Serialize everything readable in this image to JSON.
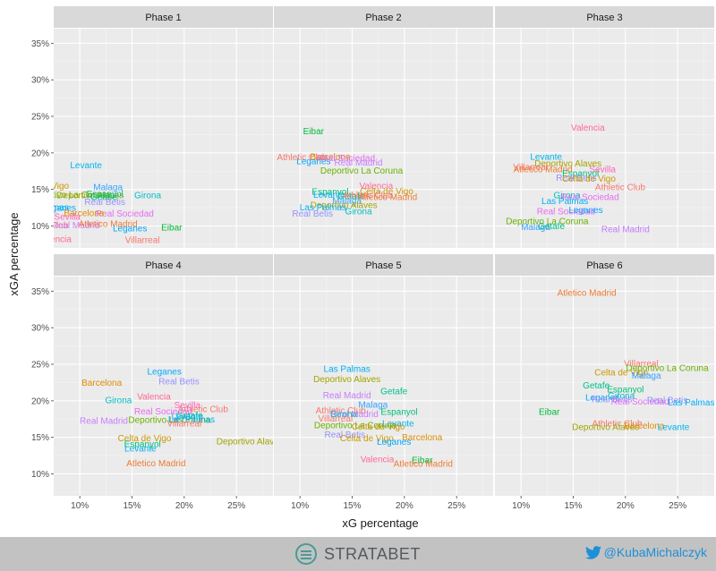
{
  "chart_data": {
    "type": "scatter",
    "xlabel": "xG percentage",
    "ylabel": "xGA percentage",
    "xlim": [
      7.5,
      28.5
    ],
    "ylim": [
      7,
      37
    ],
    "xticks": [
      10,
      15,
      20,
      25
    ],
    "yticks": [
      10,
      15,
      20,
      25,
      30,
      35
    ],
    "x_tick_labels": [
      "10%",
      "15%",
      "20%",
      "25%"
    ],
    "y_tick_labels": [
      "10%",
      "15%",
      "20%",
      "25%",
      "30%",
      "35%"
    ],
    "grid": true,
    "legend": "none",
    "team_colors": {
      "Atletico Madrid": "#f07a33",
      "Athletic Club": "#f8766d",
      "Barcelona": "#e08b00",
      "Celta de Vigo": "#c99800",
      "Deportivo Alaves": "#a3a500",
      "Deportivo La Coruna": "#6bb100",
      "Eibar": "#00ba38",
      "Espanyol": "#00bf7d",
      "Getafe": "#00c08b",
      "Girona": "#00bfc4",
      "Las Palmas": "#00b0f6",
      "Leganes": "#00a9ff",
      "Levante": "#00b4ef",
      "Malaga": "#35a2ff",
      "Real Betis": "#9590ff",
      "Real Madrid": "#c77cff",
      "Real Sociedad": "#e76bf3",
      "Sevilla": "#ff62bc",
      "Valencia": "#ff6a98",
      "Villarreal": "#f8766d"
    },
    "panels": [
      {
        "title": "Phase 1",
        "points": [
          {
            "team": "Levante",
            "x": 10.6,
            "y": 18.3
          },
          {
            "team": "Celta de Vigo",
            "x": 6.4,
            "y": 15.5
          },
          {
            "team": "Malaga",
            "x": 12.7,
            "y": 15.3
          },
          {
            "team": "Deportivo La Coruna",
            "x": 9.0,
            "y": 14.3
          },
          {
            "team": "Deportivo Alaves",
            "x": 11.0,
            "y": 14.2
          },
          {
            "team": "Espanyol",
            "x": 12.4,
            "y": 14.4
          },
          {
            "team": "Getafe",
            "x": 12.3,
            "y": 14.0
          },
          {
            "team": "Girona",
            "x": 16.5,
            "y": 14.2
          },
          {
            "team": "Real Betis",
            "x": 12.4,
            "y": 13.3
          },
          {
            "team": "Las Palmas",
            "x": 6.7,
            "y": 12.6
          },
          {
            "team": "Leganes",
            "x": 8.0,
            "y": 12.5
          },
          {
            "team": "Real Sociedad",
            "x": 14.3,
            "y": 11.7
          },
          {
            "team": "Barcelona",
            "x": 10.4,
            "y": 11.8
          },
          {
            "team": "Sevilla",
            "x": 8.8,
            "y": 11.3
          },
          {
            "team": "Athletic Club",
            "x": 6.5,
            "y": 10.1
          },
          {
            "team": "Real Madrid",
            "x": 9.6,
            "y": 10.1
          },
          {
            "team": "Atletico Madrid",
            "x": 12.7,
            "y": 10.3
          },
          {
            "team": "Leganes",
            "x": 14.8,
            "y": 9.7
          },
          {
            "team": "Eibar",
            "x": 18.8,
            "y": 9.8
          },
          {
            "team": "Valencia",
            "x": 7.6,
            "y": 8.2
          },
          {
            "team": "Villarreal",
            "x": 16.0,
            "y": 8.1
          }
        ]
      },
      {
        "title": "Phase 2",
        "points": [
          {
            "team": "Eibar",
            "x": 11.3,
            "y": 23.0
          },
          {
            "team": "Athletic Club",
            "x": 10.2,
            "y": 19.4
          },
          {
            "team": "Barcelona",
            "x": 12.9,
            "y": 19.5
          },
          {
            "team": "Leganes",
            "x": 11.3,
            "y": 18.9
          },
          {
            "team": "Real Sociedad",
            "x": 14.4,
            "y": 19.3
          },
          {
            "team": "Real Madrid",
            "x": 15.6,
            "y": 18.7
          },
          {
            "team": "Deportivo La Coruna",
            "x": 15.9,
            "y": 17.6
          },
          {
            "team": "Valencia",
            "x": 17.3,
            "y": 15.5
          },
          {
            "team": "Espanyol",
            "x": 12.9,
            "y": 14.7
          },
          {
            "team": "Celta de Vigo",
            "x": 18.3,
            "y": 14.8
          },
          {
            "team": "Levante",
            "x": 12.8,
            "y": 14.3
          },
          {
            "team": "Getafe",
            "x": 14.9,
            "y": 14.1
          },
          {
            "team": "Athletic Club",
            "x": 16.5,
            "y": 14.2
          },
          {
            "team": "Atletico Madrid",
            "x": 18.4,
            "y": 14.0
          },
          {
            "team": "Malaga",
            "x": 14.5,
            "y": 13.5
          },
          {
            "team": "Deportivo Alaves",
            "x": 14.2,
            "y": 12.9
          },
          {
            "team": "Las Palmas",
            "x": 12.2,
            "y": 12.6
          },
          {
            "team": "Girona",
            "x": 15.6,
            "y": 12.0
          },
          {
            "team": "Real Betis",
            "x": 11.2,
            "y": 11.7
          }
        ]
      },
      {
        "title": "Phase 3",
        "points": [
          {
            "team": "Valencia",
            "x": 16.4,
            "y": 23.5
          },
          {
            "team": "Levante",
            "x": 12.4,
            "y": 19.5
          },
          {
            "team": "Deportivo Alaves",
            "x": 14.5,
            "y": 18.6
          },
          {
            "team": "Villarreal",
            "x": 10.9,
            "y": 18.1
          },
          {
            "team": "Sevilla",
            "x": 17.8,
            "y": 17.8
          },
          {
            "team": "Atletico Madrid",
            "x": 12.1,
            "y": 17.8
          },
          {
            "team": "Espanyol",
            "x": 15.7,
            "y": 17.2
          },
          {
            "team": "Real Betis",
            "x": 15.3,
            "y": 16.6
          },
          {
            "team": "Celta de Vigo",
            "x": 16.5,
            "y": 16.5
          },
          {
            "team": "Athletic Club",
            "x": 19.5,
            "y": 15.3
          },
          {
            "team": "Girona",
            "x": 14.4,
            "y": 14.2
          },
          {
            "team": "Real Sociedad",
            "x": 16.6,
            "y": 14.0
          },
          {
            "team": "Las Palmas",
            "x": 14.2,
            "y": 13.4
          },
          {
            "team": "Real Sociedad",
            "x": 14.3,
            "y": 12.0
          },
          {
            "team": "Leganes",
            "x": 16.2,
            "y": 12.2
          },
          {
            "team": "Deportivo La Coruna",
            "x": 12.5,
            "y": 10.7
          },
          {
            "team": "Malaga",
            "x": 11.4,
            "y": 9.9
          },
          {
            "team": "Getafe",
            "x": 12.9,
            "y": 10.0
          },
          {
            "team": "Real Madrid",
            "x": 20.0,
            "y": 9.6
          }
        ]
      },
      {
        "title": "Phase 4",
        "points": [
          {
            "team": "Leganes",
            "x": 18.1,
            "y": 24.0
          },
          {
            "team": "Barcelona",
            "x": 12.1,
            "y": 22.5
          },
          {
            "team": "Real Betis",
            "x": 19.5,
            "y": 22.7
          },
          {
            "team": "Valencia",
            "x": 17.1,
            "y": 20.6
          },
          {
            "team": "Girona",
            "x": 13.7,
            "y": 20.1
          },
          {
            "team": "Sevilla",
            "x": 20.3,
            "y": 19.4
          },
          {
            "team": "Athletic Club",
            "x": 21.8,
            "y": 18.9
          },
          {
            "team": "Real Sociedad",
            "x": 18.0,
            "y": 18.6
          },
          {
            "team": "Getafe",
            "x": 20.5,
            "y": 18.0
          },
          {
            "team": "Deportivo La Coruna",
            "x": 18.6,
            "y": 17.4
          },
          {
            "team": "Real Madrid",
            "x": 12.3,
            "y": 17.3
          },
          {
            "team": "Las Palmas",
            "x": 20.7,
            "y": 17.5
          },
          {
            "team": "Levante",
            "x": 20.3,
            "y": 17.9
          },
          {
            "team": "Villarreal",
            "x": 20.0,
            "y": 16.9
          },
          {
            "team": "Celta de Vigo",
            "x": 16.2,
            "y": 14.9
          },
          {
            "team": "Deportivo Alaves",
            "x": 26.3,
            "y": 14.5
          },
          {
            "team": "Espanyol",
            "x": 16.0,
            "y": 14.1
          },
          {
            "team": "Levante",
            "x": 15.8,
            "y": 13.5
          },
          {
            "team": "Atletico Madrid",
            "x": 17.3,
            "y": 11.5
          }
        ]
      },
      {
        "title": "Phase 5",
        "points": [
          {
            "team": "Las Palmas",
            "x": 14.5,
            "y": 24.4
          },
          {
            "team": "Deportivo Alaves",
            "x": 14.5,
            "y": 23.0
          },
          {
            "team": "Getafe",
            "x": 19.0,
            "y": 21.3
          },
          {
            "team": "Real Madrid",
            "x": 14.5,
            "y": 20.8
          },
          {
            "team": "Malaga",
            "x": 17.0,
            "y": 19.5
          },
          {
            "team": "Athletic Club",
            "x": 13.9,
            "y": 18.7
          },
          {
            "team": "Espanyol",
            "x": 19.5,
            "y": 18.5
          },
          {
            "team": "Real Madrid",
            "x": 15.2,
            "y": 18.2
          },
          {
            "team": "Girona",
            "x": 14.2,
            "y": 18.2
          },
          {
            "team": "Villarreal",
            "x": 13.4,
            "y": 17.6
          },
          {
            "team": "Levante",
            "x": 19.4,
            "y": 16.9
          },
          {
            "team": "Deportivo La Coruna",
            "x": 15.3,
            "y": 16.7
          },
          {
            "team": "Celta de Vigo",
            "x": 17.5,
            "y": 16.5
          },
          {
            "team": "Real Betis",
            "x": 14.3,
            "y": 15.4
          },
          {
            "team": "Celta de Vigo",
            "x": 16.4,
            "y": 14.9
          },
          {
            "team": "Barcelona",
            "x": 21.7,
            "y": 15.0
          },
          {
            "team": "Leganes",
            "x": 19.0,
            "y": 14.4
          },
          {
            "team": "Valencia",
            "x": 17.4,
            "y": 12.0
          },
          {
            "team": "Eibar",
            "x": 21.7,
            "y": 11.9
          },
          {
            "team": "Atletico Madrid",
            "x": 21.8,
            "y": 11.4
          }
        ]
      },
      {
        "title": "Phase 6",
        "points": [
          {
            "team": "Atletico Madrid",
            "x": 16.3,
            "y": 34.8
          },
          {
            "team": "Villarreal",
            "x": 21.5,
            "y": 25.1
          },
          {
            "team": "Deportivo La Coruna",
            "x": 24.0,
            "y": 24.5
          },
          {
            "team": "Celta de Vigo",
            "x": 19.6,
            "y": 23.9
          },
          {
            "team": "Malaga",
            "x": 22.0,
            "y": 23.5
          },
          {
            "team": "Getafe",
            "x": 17.2,
            "y": 22.1
          },
          {
            "team": "Espanyol",
            "x": 20.0,
            "y": 21.6
          },
          {
            "team": "Leganes",
            "x": 17.8,
            "y": 20.5
          },
          {
            "team": "Girona",
            "x": 19.6,
            "y": 20.7
          },
          {
            "team": "Real Betis",
            "x": 18.7,
            "y": 20.2
          },
          {
            "team": "Real Sociedad",
            "x": 21.4,
            "y": 19.9
          },
          {
            "team": "Real Betis",
            "x": 24.0,
            "y": 20.1
          },
          {
            "team": "Las Palmas",
            "x": 26.3,
            "y": 19.8
          },
          {
            "team": "Eibar",
            "x": 12.7,
            "y": 18.5
          },
          {
            "team": "Athletic Club",
            "x": 19.2,
            "y": 16.9
          },
          {
            "team": "Deportivo Alaves",
            "x": 18.1,
            "y": 16.4
          },
          {
            "team": "Barcelona",
            "x": 21.8,
            "y": 16.6
          },
          {
            "team": "Levante",
            "x": 24.6,
            "y": 16.4
          }
        ]
      }
    ]
  },
  "footer": {
    "brand": "STRATABET",
    "twitter_handle": "@KubaMichalczyk"
  },
  "colors": {
    "panel_background": "#ebebeb",
    "strip_background": "#d9d9d9",
    "grid_major": "#ffffff",
    "footer_background": "#c2c2c2",
    "brand_color": "#4c9a94",
    "twitter_color": "#1d8fd8"
  }
}
